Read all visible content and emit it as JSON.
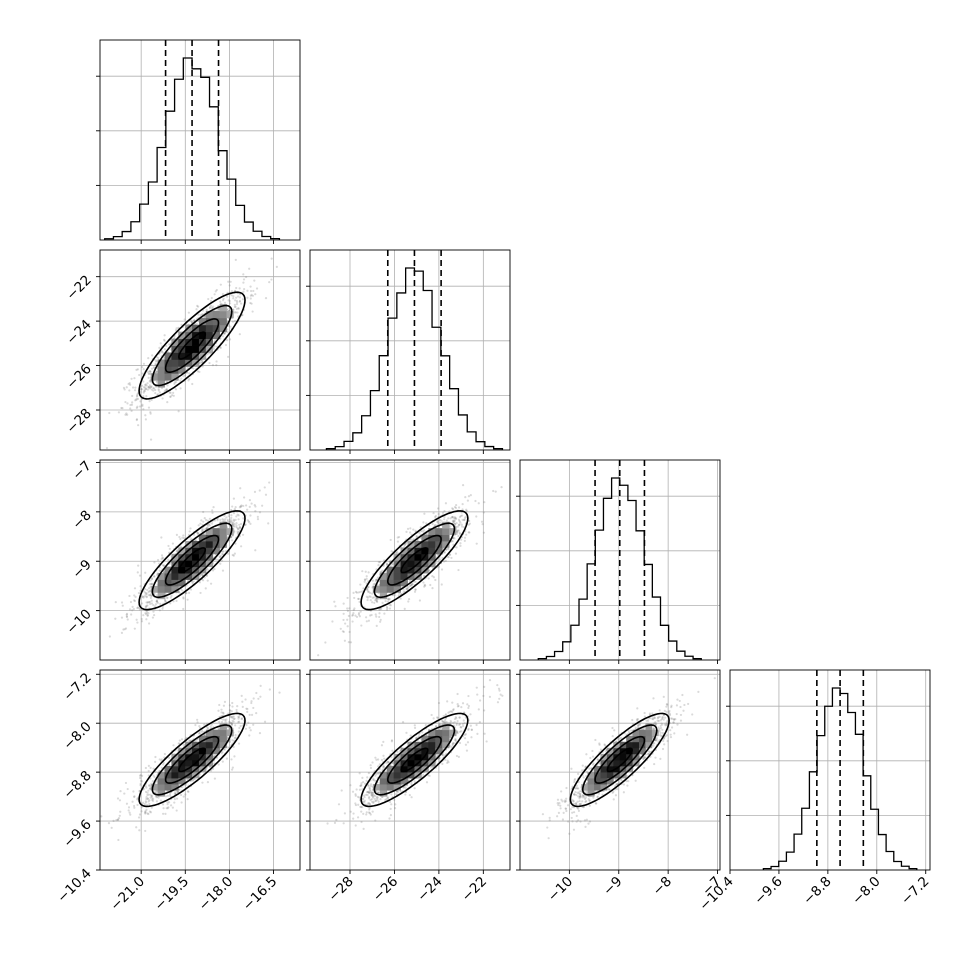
{
  "chart_data": {
    "type": "corner",
    "parameters": [
      {
        "mean": -19.27,
        "sd": 0.9,
        "lim": [
          -22.4,
          -15.6
        ],
        "ticks": [
          -21.0,
          -19.5,
          -18.0,
          -16.5
        ],
        "tick_labels": [
          "−21.0",
          "−19.5",
          "−18.0",
          "−16.5"
        ],
        "quantiles": [
          -20.17,
          -19.27,
          -18.37
        ]
      },
      {
        "mean": -25.1,
        "sd": 1.2,
        "lim": [
          -29.8,
          -20.8
        ],
        "ticks": [
          -28,
          -26,
          -24,
          -22
        ],
        "tick_labels": [
          "−28",
          "−26",
          "−24",
          "−22"
        ],
        "quantiles": [
          -26.3,
          -25.1,
          -23.9
        ]
      },
      {
        "mean": -8.98,
        "sd": 0.5,
        "lim": [
          -11.0,
          -6.95
        ],
        "ticks": [
          -10,
          -9,
          -8,
          -7
        ],
        "tick_labels": [
          "−10",
          "−9",
          "−8",
          "−7"
        ],
        "quantiles": [
          -9.48,
          -8.98,
          -8.48
        ]
      },
      {
        "mean": -8.6,
        "sd": 0.38,
        "lim": [
          -10.4,
          -7.13
        ],
        "ticks": [
          -10.4,
          -9.6,
          -8.8,
          -8.0,
          -7.2
        ],
        "tick_labels": [
          "−10.4",
          "−9.6",
          "−8.8",
          "−8.0",
          "−7.2"
        ],
        "quantiles": [
          -8.98,
          -8.6,
          -8.22
        ]
      }
    ],
    "correlation": 0.85,
    "histogram": {
      "bins": 20,
      "quantile_levels": [
        0.16,
        0.5,
        0.84
      ]
    },
    "contour_levels_sigma": [
      0.5,
      1.0,
      1.5,
      2.0
    ],
    "grid": true,
    "colors": {
      "line": "#000000",
      "grid": "#b0b0b0",
      "points": "#7a7a7a",
      "density_scale": [
        "#ffffff",
        "#000000"
      ]
    }
  }
}
